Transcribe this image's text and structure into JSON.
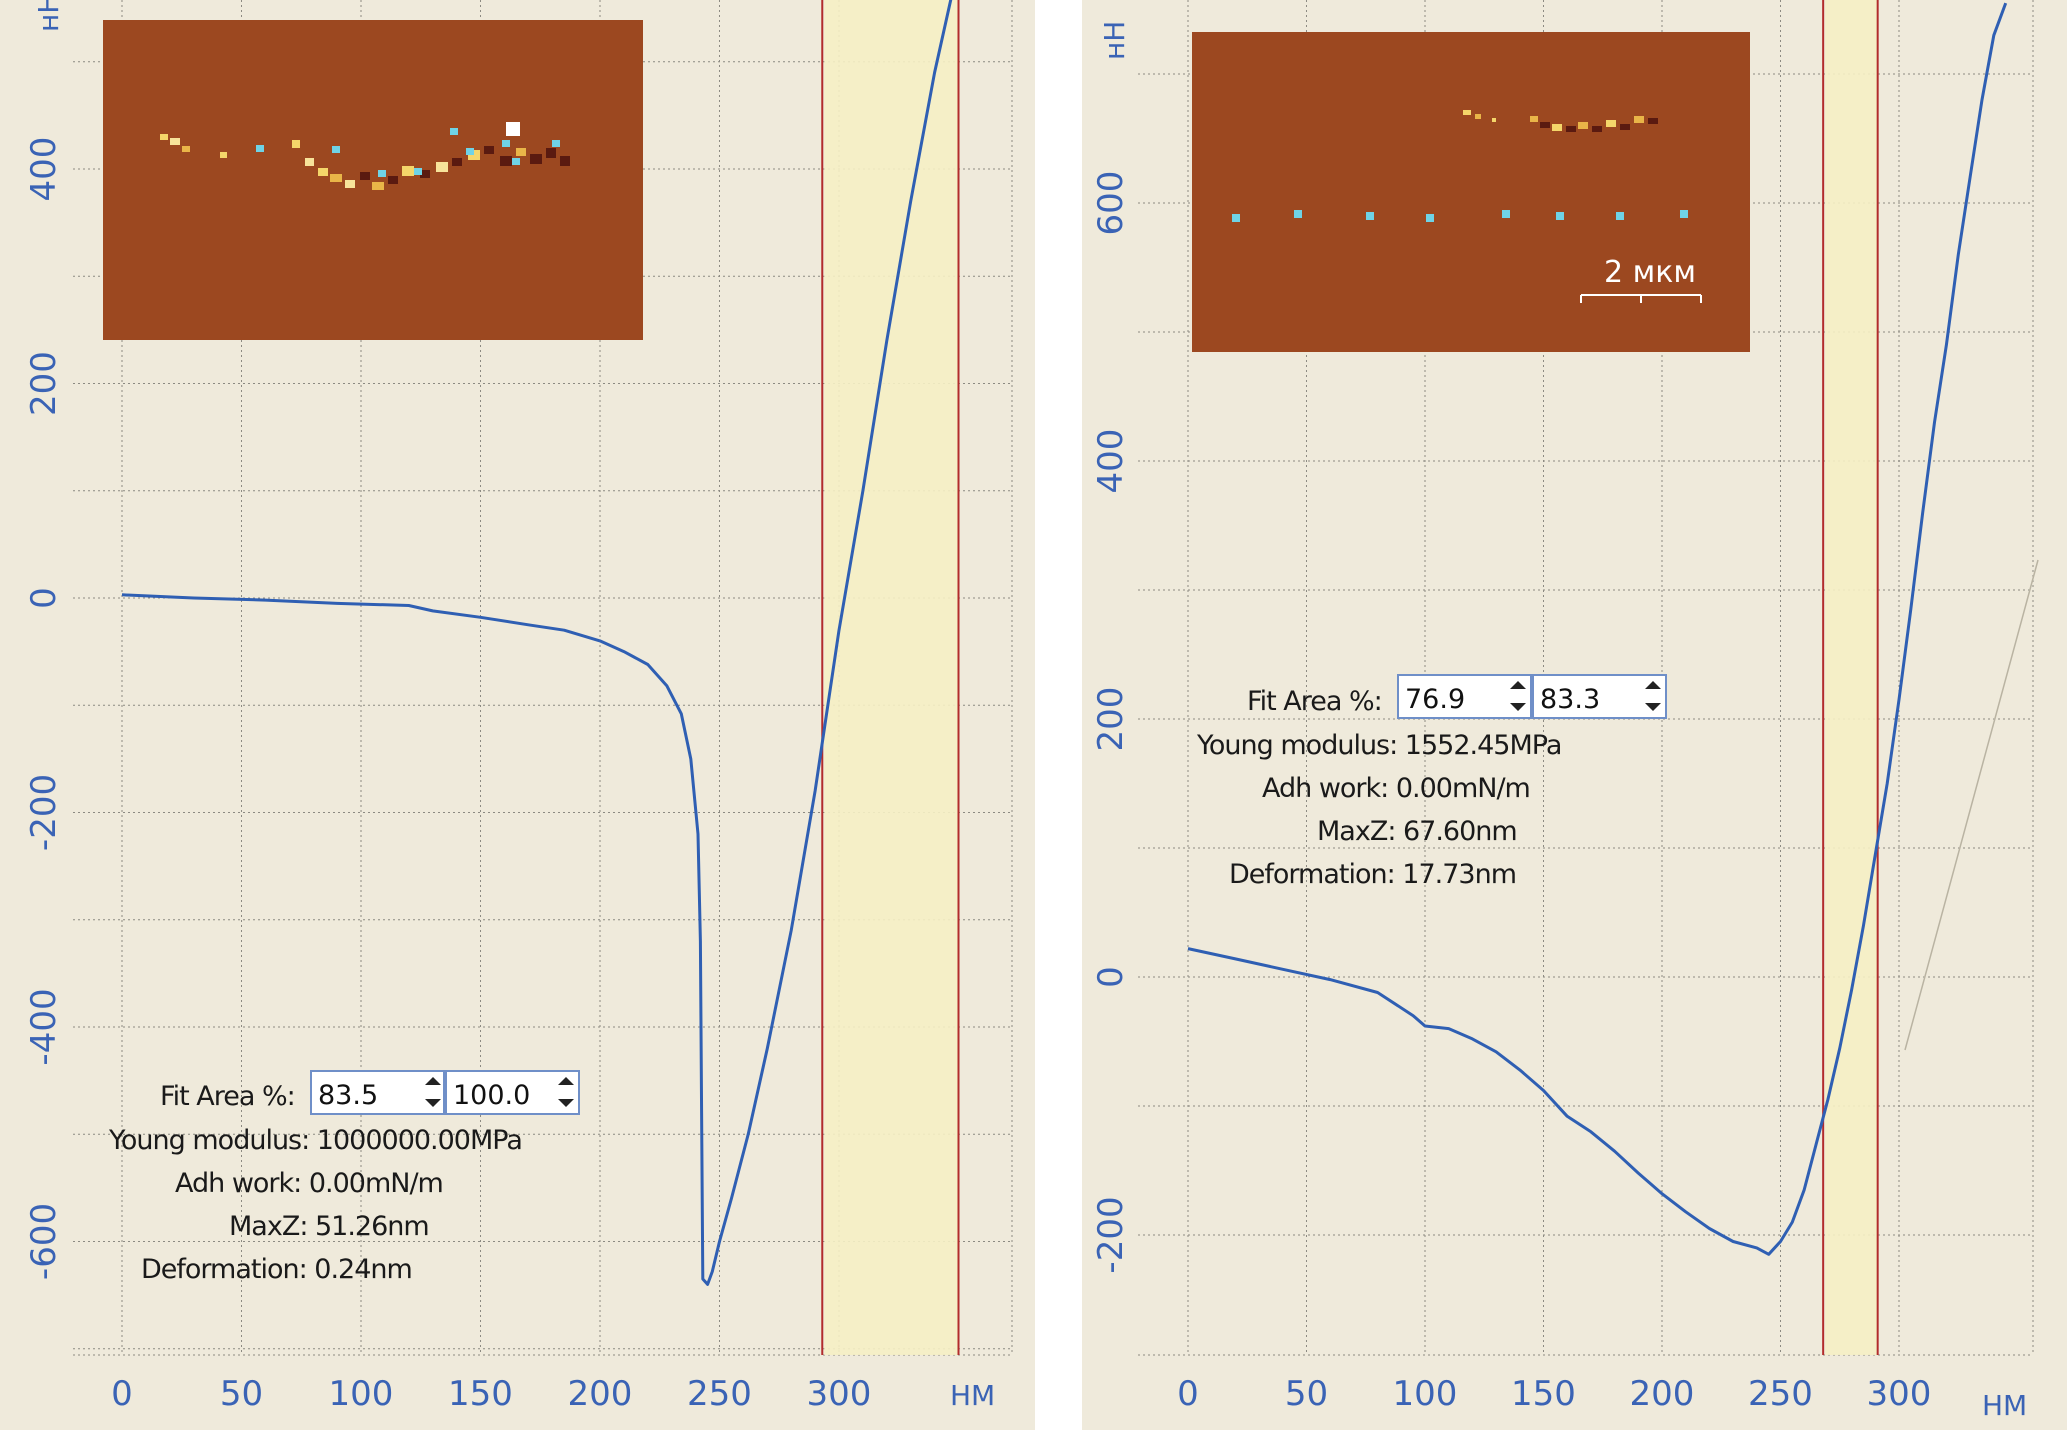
{
  "chart_data": [
    {
      "type": "line",
      "xlabel": "НМ",
      "ylabel": "нН",
      "xlim": [
        -8,
        368
      ],
      "ylim": [
        -700,
        560
      ],
      "x_ticks": [
        0,
        50,
        100,
        150,
        200,
        250,
        300
      ],
      "x_tick_labels": [
        "0",
        "50",
        "100",
        "150",
        "200",
        "250",
        "300"
      ],
      "y_ticks": [
        -600,
        -400,
        -200,
        0,
        200,
        400
      ],
      "y_tick_labels": [
        "-600",
        "-400",
        "-200",
        "0",
        "200",
        "400"
      ],
      "fit_area_nm": [
        293,
        350
      ],
      "series": [
        {
          "x": [
            0,
            30,
            60,
            90,
            120,
            130,
            150,
            170,
            185,
            200,
            210,
            220,
            228,
            234,
            238,
            241,
            242,
            242.5,
            243,
            245,
            247,
            250,
            255,
            262,
            270,
            280,
            290,
            300,
            310,
            320,
            330,
            340,
            347,
            350
          ],
          "y": [
            3,
            0,
            -2,
            -5,
            -7,
            -12,
            -18,
            -25,
            -30,
            -40,
            -50,
            -62,
            -82,
            -108,
            -150,
            -220,
            -320,
            -480,
            -635,
            -640,
            -628,
            -600,
            -560,
            -500,
            -420,
            -310,
            -180,
            -30,
            100,
            240,
            370,
            490,
            560,
            560
          ]
        }
      ],
      "info": {
        "fit_area_label": "Fit Area %:",
        "fit_area_from": "83.5",
        "fit_area_to": "100.0",
        "young_modulus": "Young modulus: 1000000.00MPa",
        "adh_work": "Adh work: 0.00mN/m",
        "maxz": "MaxZ: 51.26nm",
        "deformation": "Deformation: 0.24nm"
      }
    },
    {
      "type": "line",
      "xlabel": "НМ",
      "ylabel": "нН",
      "xlim": [
        -8,
        350
      ],
      "ylim": [
        -290,
        755
      ],
      "x_ticks": [
        0,
        50,
        100,
        150,
        200,
        250,
        300
      ],
      "x_tick_labels": [
        "0",
        "50",
        "100",
        "150",
        "200",
        "250",
        "300"
      ],
      "y_ticks": [
        -200,
        0,
        200,
        400,
        600
      ],
      "y_tick_labels": [
        "-200",
        "0",
        "200",
        "400",
        "600"
      ],
      "fit_area_nm": [
        268,
        291
      ],
      "series": [
        {
          "x": [
            0,
            20,
            40,
            60,
            80,
            95,
            100,
            110,
            120,
            130,
            140,
            150,
            160,
            170,
            180,
            190,
            200,
            210,
            220,
            230,
            240,
            245,
            250,
            255,
            260,
            265,
            270,
            275,
            280,
            285,
            290,
            295,
            300,
            305,
            310,
            315,
            320,
            325,
            330,
            335,
            340,
            345,
            345
          ],
          "y": [
            22,
            14,
            6,
            -2,
            -12,
            -30,
            -38,
            -40,
            -48,
            -58,
            -72,
            -88,
            -108,
            -120,
            -135,
            -152,
            -168,
            -182,
            -195,
            -205,
            -210,
            -215,
            -205,
            -190,
            -165,
            -130,
            -95,
            -55,
            -10,
            40,
            95,
            150,
            215,
            285,
            360,
            430,
            490,
            560,
            620,
            680,
            730,
            755,
            755
          ]
        }
      ],
      "info": {
        "fit_area_label": "Fit Area %:",
        "fit_area_from": "76.9",
        "fit_area_to": "83.3",
        "young_modulus": "Young modulus: 1552.45MPa",
        "adh_work": "Adh work: 0.00mN/m",
        "maxz": "MaxZ: 67.60nm",
        "deformation": "Deformation: 17.73nm"
      },
      "scale_bar_label": "2 мкм"
    }
  ]
}
